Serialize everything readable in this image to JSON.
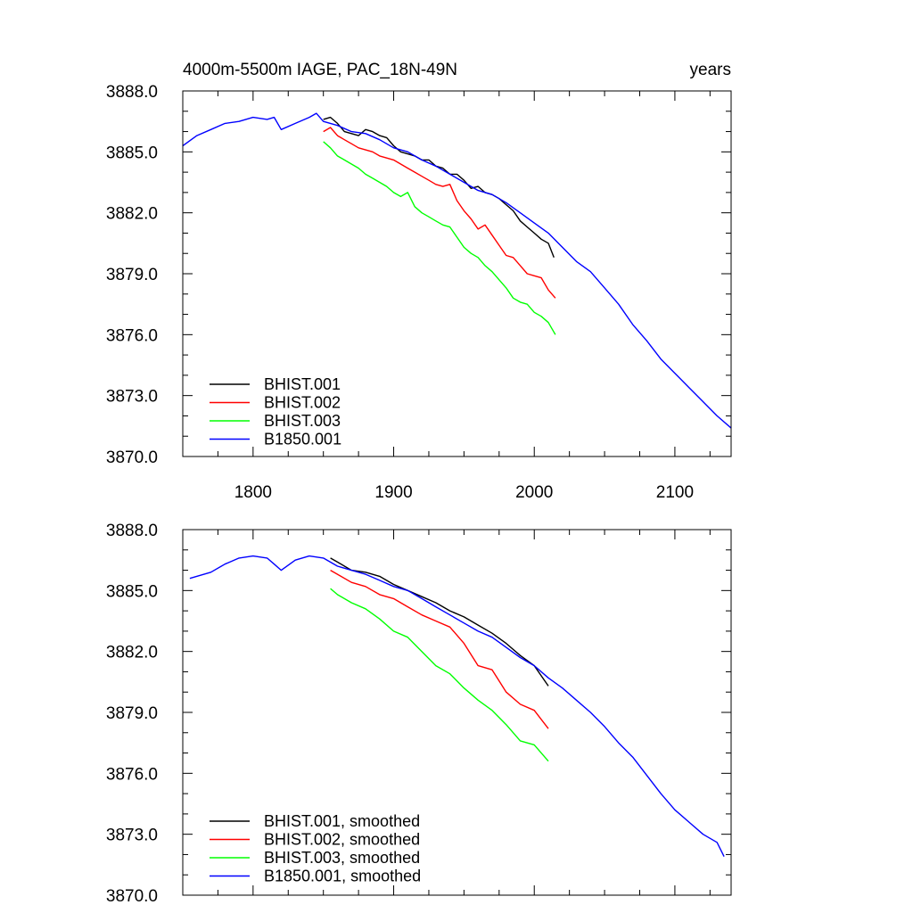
{
  "chart_data": [
    {
      "type": "line",
      "title_left": "4000m-5500m IAGE, PAC_18N-49N",
      "title_right": "years",
      "xlabel": "",
      "ylabel": "",
      "xlim": [
        1750,
        2140
      ],
      "ylim": [
        3870,
        3888
      ],
      "xticks": [
        1800,
        1900,
        2000,
        2100
      ],
      "xtick_labels": [
        "1800",
        "1900",
        "2000",
        "2100"
      ],
      "yticks": [
        3870,
        3873,
        3876,
        3879,
        3882,
        3885,
        3888
      ],
      "ytick_labels": [
        "3870.0",
        "3873.0",
        "3876.0",
        "3879.0",
        "3882.0",
        "3885.0",
        "3888.0"
      ],
      "legend_position": "bottom-left",
      "series": [
        {
          "name": "BHIST.001",
          "color": "#000000",
          "x": [
            1850,
            1855,
            1860,
            1865,
            1870,
            1875,
            1880,
            1885,
            1890,
            1895,
            1900,
            1905,
            1910,
            1915,
            1920,
            1925,
            1930,
            1935,
            1940,
            1945,
            1950,
            1955,
            1960,
            1965,
            1970,
            1975,
            1980,
            1985,
            1990,
            1995,
            2000,
            2005,
            2010,
            2014
          ],
          "y": [
            3886.6,
            3886.7,
            3886.4,
            3886.0,
            3885.9,
            3885.8,
            3886.1,
            3886.0,
            3885.8,
            3885.7,
            3885.3,
            3885.0,
            3884.9,
            3884.8,
            3884.6,
            3884.6,
            3884.3,
            3884.2,
            3883.9,
            3883.9,
            3883.6,
            3883.2,
            3883.3,
            3883.0,
            3882.9,
            3882.7,
            3882.4,
            3882.1,
            3881.6,
            3881.3,
            3881.0,
            3880.7,
            3880.5,
            3879.8
          ]
        },
        {
          "name": "BHIST.002",
          "color": "#ff0000",
          "x": [
            1850,
            1855,
            1860,
            1865,
            1870,
            1875,
            1880,
            1885,
            1890,
            1895,
            1900,
            1905,
            1910,
            1915,
            1920,
            1925,
            1930,
            1935,
            1940,
            1945,
            1950,
            1955,
            1960,
            1965,
            1970,
            1975,
            1980,
            1985,
            1990,
            1995,
            2000,
            2005,
            2010,
            2015
          ],
          "y": [
            3886.0,
            3886.2,
            3885.8,
            3885.6,
            3885.4,
            3885.2,
            3885.1,
            3885.0,
            3884.8,
            3884.7,
            3884.6,
            3884.4,
            3884.2,
            3884.0,
            3883.8,
            3883.6,
            3883.4,
            3883.3,
            3883.4,
            3882.6,
            3882.1,
            3881.7,
            3881.2,
            3881.4,
            3880.9,
            3880.4,
            3879.9,
            3879.8,
            3879.4,
            3879.0,
            3878.9,
            3878.8,
            3878.2,
            3877.8
          ]
        },
        {
          "name": "BHIST.003",
          "color": "#00ff00",
          "x": [
            1850,
            1855,
            1860,
            1865,
            1870,
            1875,
            1880,
            1885,
            1890,
            1895,
            1900,
            1905,
            1910,
            1915,
            1920,
            1925,
            1930,
            1935,
            1940,
            1945,
            1950,
            1955,
            1960,
            1965,
            1970,
            1975,
            1980,
            1985,
            1990,
            1995,
            2000,
            2005,
            2010,
            2015
          ],
          "y": [
            3885.5,
            3885.2,
            3884.8,
            3884.6,
            3884.4,
            3884.2,
            3883.9,
            3883.7,
            3883.5,
            3883.3,
            3883.0,
            3882.8,
            3883.0,
            3882.3,
            3882.0,
            3881.8,
            3881.6,
            3881.4,
            3881.3,
            3880.8,
            3880.3,
            3880.0,
            3879.8,
            3879.4,
            3879.1,
            3878.7,
            3878.3,
            3877.8,
            3877.6,
            3877.5,
            3877.1,
            3876.9,
            3876.6,
            3876.0
          ]
        },
        {
          "name": "B1850.001",
          "color": "#0000ff",
          "x": [
            1750,
            1760,
            1770,
            1780,
            1790,
            1800,
            1810,
            1815,
            1820,
            1830,
            1840,
            1845,
            1850,
            1860,
            1870,
            1880,
            1890,
            1900,
            1910,
            1920,
            1930,
            1940,
            1950,
            1960,
            1970,
            1980,
            1990,
            2000,
            2010,
            2020,
            2030,
            2040,
            2050,
            2060,
            2070,
            2080,
            2090,
            2100,
            2110,
            2120,
            2130,
            2140
          ],
          "y": [
            3885.3,
            3885.8,
            3886.1,
            3886.4,
            3886.5,
            3886.7,
            3886.6,
            3886.7,
            3886.1,
            3886.4,
            3886.7,
            3886.9,
            3886.5,
            3886.3,
            3886.0,
            3885.9,
            3885.6,
            3885.2,
            3885.0,
            3884.6,
            3884.3,
            3883.9,
            3883.5,
            3883.1,
            3882.9,
            3882.5,
            3882.0,
            3881.5,
            3881.0,
            3880.3,
            3879.6,
            3879.1,
            3878.3,
            3877.5,
            3876.5,
            3875.7,
            3874.8,
            3874.1,
            3873.4,
            3872.7,
            3872.0,
            3871.4
          ]
        }
      ]
    },
    {
      "type": "line",
      "title_left": "",
      "title_right": "",
      "xlabel": "",
      "ylabel": "",
      "xlim": [
        1750,
        2140
      ],
      "ylim": [
        3870,
        3888
      ],
      "xticks": [
        1800,
        1900,
        2000,
        2100
      ],
      "xtick_labels": [
        "",
        "",
        "",
        ""
      ],
      "yticks": [
        3870,
        3873,
        3876,
        3879,
        3882,
        3885,
        3888
      ],
      "ytick_labels": [
        "3870.0",
        "3873.0",
        "3876.0",
        "3879.0",
        "3882.0",
        "3885.0",
        "3888.0"
      ],
      "legend_position": "bottom-left",
      "series": [
        {
          "name": "BHIST.001, smoothed",
          "color": "#000000",
          "x": [
            1855,
            1860,
            1870,
            1880,
            1890,
            1900,
            1910,
            1920,
            1930,
            1940,
            1950,
            1960,
            1970,
            1980,
            1990,
            2000,
            2010
          ],
          "y": [
            3886.6,
            3886.4,
            3886.0,
            3885.9,
            3885.7,
            3885.3,
            3885.0,
            3884.7,
            3884.4,
            3884.0,
            3883.7,
            3883.3,
            3882.9,
            3882.4,
            3881.8,
            3881.3,
            3880.3
          ]
        },
        {
          "name": "BHIST.002, smoothed",
          "color": "#ff0000",
          "x": [
            1855,
            1860,
            1870,
            1880,
            1890,
            1900,
            1910,
            1920,
            1930,
            1940,
            1950,
            1960,
            1970,
            1980,
            1990,
            2000,
            2010
          ],
          "y": [
            3886.0,
            3885.8,
            3885.4,
            3885.2,
            3884.8,
            3884.6,
            3884.2,
            3883.8,
            3883.5,
            3883.2,
            3882.4,
            3881.3,
            3881.1,
            3880.0,
            3879.4,
            3879.1,
            3878.2
          ]
        },
        {
          "name": "BHIST.003, smoothed",
          "color": "#00ff00",
          "x": [
            1855,
            1860,
            1870,
            1880,
            1890,
            1900,
            1910,
            1920,
            1930,
            1940,
            1950,
            1960,
            1970,
            1980,
            1990,
            2000,
            2010
          ],
          "y": [
            3885.1,
            3884.8,
            3884.4,
            3884.1,
            3883.6,
            3883.0,
            3882.7,
            3882.0,
            3881.3,
            3880.9,
            3880.2,
            3879.6,
            3879.1,
            3878.4,
            3877.6,
            3877.4,
            3876.6
          ]
        },
        {
          "name": "B1850.001, smoothed",
          "color": "#0000ff",
          "x": [
            1755,
            1770,
            1780,
            1790,
            1800,
            1810,
            1815,
            1820,
            1830,
            1840,
            1850,
            1860,
            1870,
            1880,
            1890,
            1900,
            1910,
            1920,
            1930,
            1940,
            1950,
            1960,
            1970,
            1980,
            1990,
            2000,
            2010,
            2020,
            2030,
            2040,
            2050,
            2060,
            2070,
            2080,
            2090,
            2100,
            2110,
            2120,
            2130,
            2135
          ],
          "y": [
            3885.6,
            3885.9,
            3886.3,
            3886.6,
            3886.7,
            3886.6,
            3886.3,
            3886.0,
            3886.5,
            3886.7,
            3886.6,
            3886.2,
            3886.0,
            3885.8,
            3885.5,
            3885.2,
            3885.0,
            3884.6,
            3884.2,
            3883.8,
            3883.4,
            3883.0,
            3882.7,
            3882.2,
            3881.7,
            3881.3,
            3880.7,
            3880.2,
            3879.6,
            3879.0,
            3878.3,
            3877.5,
            3876.8,
            3875.9,
            3875.0,
            3874.2,
            3873.6,
            3873.0,
            3872.6,
            3871.9
          ]
        }
      ]
    }
  ]
}
